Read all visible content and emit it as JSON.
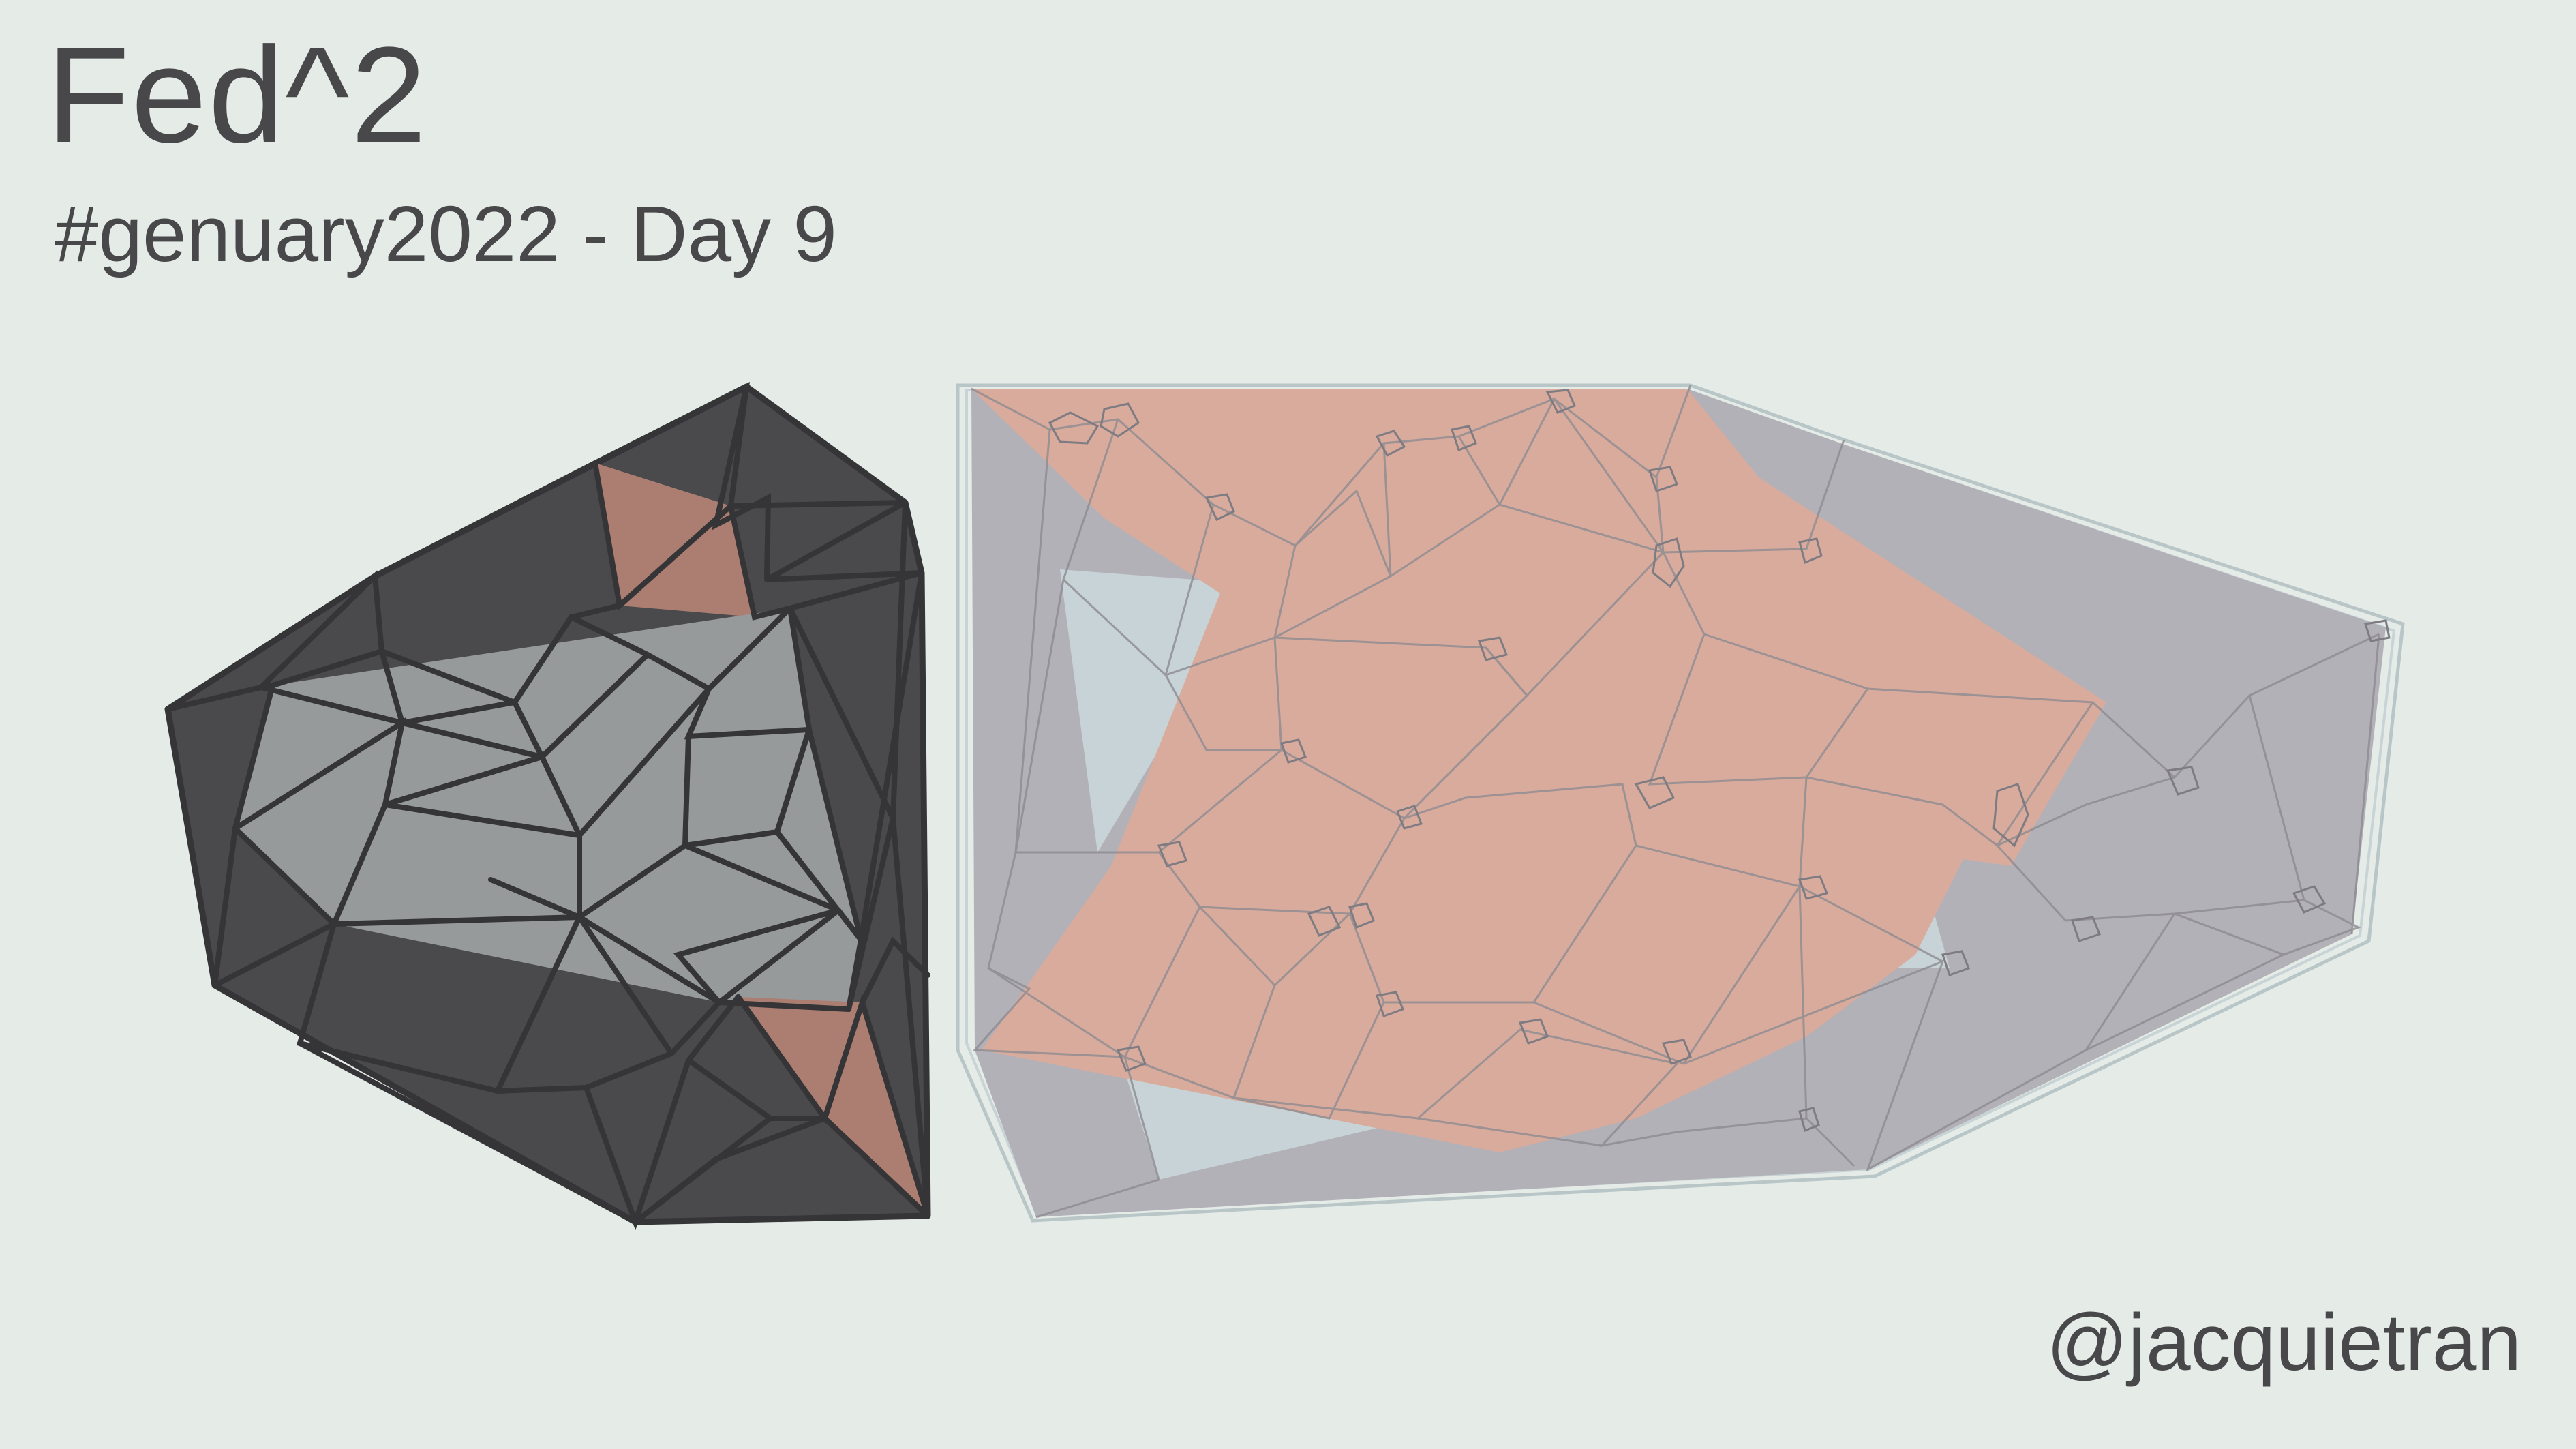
{
  "title": "Fed^2",
  "subtitle": "#genuary2022 - Day 9",
  "handle": "@jacquietran",
  "colors": {
    "background": "#e5ebe7",
    "text": "#48484b",
    "charcoal": "#4a4a4d",
    "slate": "#969a9a",
    "salmon": "#ac7e72",
    "salmon_light": "#d9ab9c",
    "lavender_grey": "#b2b1b7",
    "pale_blue": "#c7d3d6"
  }
}
